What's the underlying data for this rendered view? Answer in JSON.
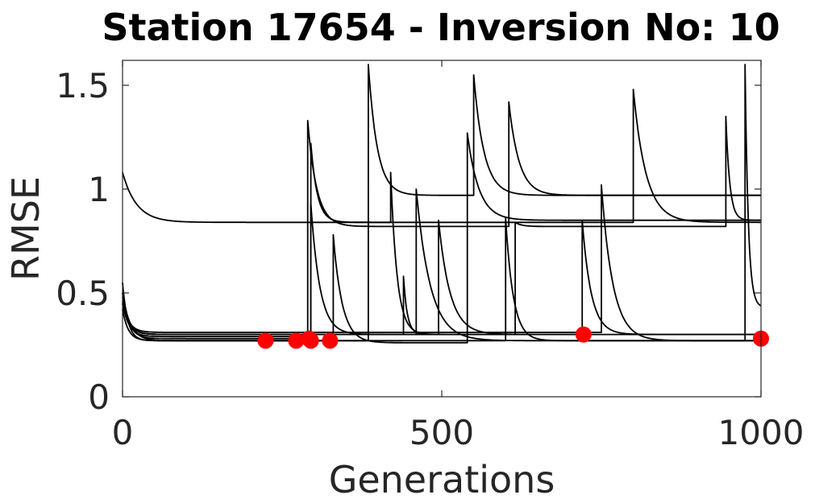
{
  "chart_data": {
    "type": "line",
    "title": "Station 17654 - Inversion No: 10",
    "xlabel": "Generations",
    "ylabel": "RMSE",
    "xlim": [
      0,
      1000
    ],
    "ylim": [
      0,
      1.62
    ],
    "xticks": [
      0,
      500,
      1000
    ],
    "xtick_labels": [
      "0",
      "500",
      "1000"
    ],
    "yticks": [
      0,
      0.5,
      1,
      1.5
    ],
    "ytick_labels": [
      "0",
      "0.5",
      "1",
      "1.5"
    ],
    "grid": false,
    "box": true,
    "line_color": "#000000",
    "marker_color": "#ff0000",
    "series": [
      {
        "segments": [
          {
            "x0": 0,
            "x1": 385,
            "start": 0.55,
            "end": 0.27,
            "rate": 8
          },
          {
            "x0": 385,
            "x1": 550,
            "start": 1.6,
            "end": 0.97,
            "rate": 14
          },
          {
            "x0": 550,
            "x1": 1000,
            "start": 1.55,
            "end": 0.97,
            "rate": 16
          }
        ]
      },
      {
        "segments": [
          {
            "x0": 0,
            "x1": 800,
            "start": 1.08,
            "end": 0.84,
            "rate": 22
          },
          {
            "x0": 800,
            "x1": 1000,
            "start": 1.48,
            "end": 0.84,
            "rate": 20
          }
        ]
      },
      {
        "segments": [
          {
            "x0": 0,
            "x1": 290,
            "start": 0.5,
            "end": 0.28,
            "rate": 10
          },
          {
            "x0": 290,
            "x1": 605,
            "start": 1.33,
            "end": 0.82,
            "rate": 14
          },
          {
            "x0": 605,
            "x1": 1000,
            "start": 1.42,
            "end": 0.97,
            "rate": 16
          }
        ]
      },
      {
        "segments": [
          {
            "x0": 0,
            "x1": 295,
            "start": 0.45,
            "end": 0.29,
            "rate": 10
          },
          {
            "x0": 295,
            "x1": 420,
            "start": 1.22,
            "end": 0.84,
            "rate": 10
          },
          {
            "x0": 420,
            "x1": 615,
            "start": 1.08,
            "end": 0.3,
            "rate": 10
          },
          {
            "x0": 615,
            "x1": 945,
            "start": 0.84,
            "end": 0.82,
            "rate": 10
          },
          {
            "x0": 945,
            "x1": 1000,
            "start": 1.35,
            "end": 0.85,
            "rate": 6
          }
        ]
      },
      {
        "segments": [
          {
            "x0": 0,
            "x1": 330,
            "start": 0.42,
            "end": 0.27,
            "rate": 9
          },
          {
            "x0": 330,
            "x1": 540,
            "start": 0.78,
            "end": 0.26,
            "rate": 14
          },
          {
            "x0": 540,
            "x1": 1000,
            "start": 1.27,
            "end": 0.85,
            "rate": 18
          }
        ]
      },
      {
        "segments": [
          {
            "x0": 0,
            "x1": 295,
            "start": 0.48,
            "end": 0.3,
            "rate": 10
          },
          {
            "x0": 295,
            "x1": 460,
            "start": 0.93,
            "end": 0.3,
            "rate": 14
          },
          {
            "x0": 460,
            "x1": 1000,
            "start": 1.0,
            "end": 0.27,
            "rate": 22
          }
        ]
      },
      {
        "segments": [
          {
            "x0": 0,
            "x1": 440,
            "start": 0.45,
            "end": 0.3,
            "rate": 10
          },
          {
            "x0": 440,
            "x1": 495,
            "start": 0.58,
            "end": 0.3,
            "rate": 6
          },
          {
            "x0": 495,
            "x1": 1000,
            "start": 0.85,
            "end": 0.3,
            "rate": 18
          }
        ]
      },
      {
        "segments": [
          {
            "x0": 0,
            "x1": 600,
            "start": 0.5,
            "end": 0.27,
            "rate": 12
          },
          {
            "x0": 600,
            "x1": 1000,
            "start": 0.86,
            "end": 0.27,
            "rate": 12
          }
        ]
      },
      {
        "segments": [
          {
            "x0": 0,
            "x1": 720,
            "start": 0.46,
            "end": 0.3,
            "rate": 10
          },
          {
            "x0": 720,
            "x1": 1000,
            "start": 0.85,
            "end": 0.3,
            "rate": 14
          }
        ]
      },
      {
        "segments": [
          {
            "x0": 0,
            "x1": 750,
            "start": 0.45,
            "end": 0.31,
            "rate": 10
          },
          {
            "x0": 750,
            "x1": 975,
            "start": 1.02,
            "end": 0.27,
            "rate": 18
          },
          {
            "x0": 975,
            "x1": 1000,
            "start": 1.6,
            "end": 0.43,
            "rate": 5
          }
        ]
      }
    ],
    "markers": {
      "x": [
        224,
        272,
        292,
        295,
        325,
        722,
        1000
      ],
      "y": [
        0.27,
        0.27,
        0.28,
        0.27,
        0.27,
        0.3,
        0.28
      ]
    }
  }
}
